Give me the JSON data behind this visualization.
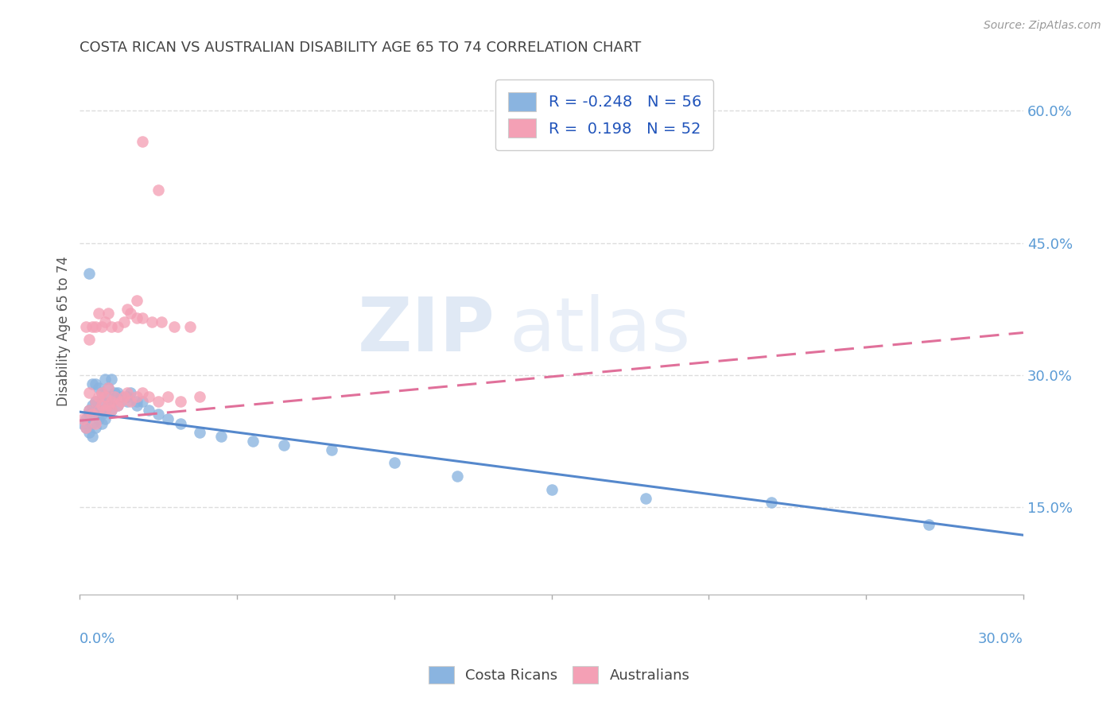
{
  "title": "COSTA RICAN VS AUSTRALIAN DISABILITY AGE 65 TO 74 CORRELATION CHART",
  "source": "Source: ZipAtlas.com",
  "ylabel": "Disability Age 65 to 74",
  "yticks": [
    "15.0%",
    "30.0%",
    "45.0%",
    "60.0%"
  ],
  "ytick_vals": [
    0.15,
    0.3,
    0.45,
    0.6
  ],
  "xlim": [
    0.0,
    0.3
  ],
  "ylim": [
    0.05,
    0.65
  ],
  "watermark_zip": "ZIP",
  "watermark_atlas": "atlas",
  "blue_color": "#8ab4e0",
  "pink_color": "#f4a0b5",
  "blue_line_color": "#5588cc",
  "pink_line_color": "#e0709a",
  "blue_r": -0.248,
  "blue_n": 56,
  "pink_r": 0.198,
  "pink_n": 52,
  "background_color": "#ffffff",
  "grid_color": "#dddddd",
  "title_color": "#444444",
  "tick_label_color": "#5b9bd5",
  "costa_ricans_x": [
    0.001,
    0.002,
    0.002,
    0.003,
    0.003,
    0.003,
    0.004,
    0.004,
    0.004,
    0.005,
    0.005,
    0.005,
    0.006,
    0.006,
    0.007,
    0.007,
    0.007,
    0.008,
    0.008,
    0.009,
    0.009,
    0.01,
    0.01,
    0.011,
    0.012,
    0.013,
    0.015,
    0.016,
    0.018,
    0.02,
    0.022,
    0.025,
    0.028,
    0.032,
    0.038,
    0.045,
    0.055,
    0.065,
    0.08,
    0.1,
    0.12,
    0.15,
    0.18,
    0.22,
    0.27,
    0.003,
    0.004,
    0.005,
    0.006,
    0.007,
    0.008,
    0.009,
    0.01,
    0.012,
    0.015,
    0.018
  ],
  "costa_ricans_y": [
    0.245,
    0.25,
    0.24,
    0.255,
    0.235,
    0.26,
    0.245,
    0.23,
    0.265,
    0.255,
    0.24,
    0.27,
    0.25,
    0.26,
    0.255,
    0.245,
    0.27,
    0.26,
    0.25,
    0.265,
    0.275,
    0.26,
    0.27,
    0.28,
    0.265,
    0.275,
    0.27,
    0.28,
    0.265,
    0.27,
    0.26,
    0.255,
    0.25,
    0.245,
    0.235,
    0.23,
    0.225,
    0.22,
    0.215,
    0.2,
    0.185,
    0.17,
    0.16,
    0.155,
    0.13,
    0.415,
    0.29,
    0.29,
    0.285,
    0.28,
    0.295,
    0.285,
    0.295,
    0.28,
    0.275,
    0.27
  ],
  "australians_x": [
    0.001,
    0.002,
    0.003,
    0.003,
    0.004,
    0.005,
    0.005,
    0.006,
    0.006,
    0.007,
    0.007,
    0.008,
    0.008,
    0.009,
    0.009,
    0.01,
    0.01,
    0.011,
    0.012,
    0.013,
    0.014,
    0.015,
    0.016,
    0.018,
    0.02,
    0.022,
    0.025,
    0.028,
    0.032,
    0.038,
    0.002,
    0.003,
    0.004,
    0.005,
    0.006,
    0.007,
    0.008,
    0.009,
    0.01,
    0.012,
    0.014,
    0.016,
    0.018,
    0.02,
    0.023,
    0.026,
    0.03,
    0.035,
    0.02,
    0.025,
    0.018,
    0.015
  ],
  "australians_y": [
    0.25,
    0.24,
    0.26,
    0.28,
    0.255,
    0.245,
    0.27,
    0.26,
    0.275,
    0.265,
    0.28,
    0.26,
    0.275,
    0.265,
    0.285,
    0.27,
    0.26,
    0.275,
    0.265,
    0.27,
    0.275,
    0.28,
    0.27,
    0.275,
    0.28,
    0.275,
    0.27,
    0.275,
    0.27,
    0.275,
    0.355,
    0.34,
    0.355,
    0.355,
    0.37,
    0.355,
    0.36,
    0.37,
    0.355,
    0.355,
    0.36,
    0.37,
    0.365,
    0.365,
    0.36,
    0.36,
    0.355,
    0.355,
    0.565,
    0.51,
    0.385,
    0.375
  ],
  "blue_line_x": [
    0.0,
    0.3
  ],
  "blue_line_y": [
    0.258,
    0.118
  ],
  "pink_line_x": [
    0.0,
    0.3
  ],
  "pink_line_y": [
    0.248,
    0.348
  ]
}
